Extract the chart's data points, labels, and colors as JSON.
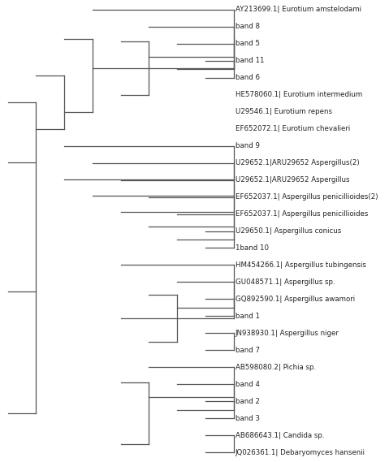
{
  "taxa": [
    "AY213699.1| Eurotium amstelodami",
    "band 8",
    "band 5",
    "band 11",
    "band 6",
    "HE578060.1| Eurotium intermedium",
    "U29546.1| Eurotium repens",
    "EF652072.1| Eurotium chevalieri",
    "band 9",
    "U29652.1|ARU29652 Aspergillus(2)",
    "U29652.1|ARU29652 Aspergillus",
    "EF652037.1| Aspergillus penicillioides(2)",
    "EF652037.1| Aspergillus penicillioides",
    "U29650.1| Aspergillus conicus",
    "1band 10",
    "HM454266.1| Aspergillus tubingensis",
    "GU048571.1| Aspergillus sp.",
    "GQ892590.1| Aspergillus awamori",
    "band 1",
    "JN938930.1| Aspergillus niger",
    "band 7",
    "AB598080.2| Pichia sp.",
    "band 4",
    "band 2",
    "band 3",
    "AB686643.1| Candida sp.",
    "JQ026361.1| Debaryomyces hansenii"
  ],
  "bg_color": "#ffffff",
  "font_size": 6.2,
  "font_color": "#222222",
  "tree_color": "#555555",
  "dotted_color": "#aaaaaa",
  "line_width": 0.9
}
